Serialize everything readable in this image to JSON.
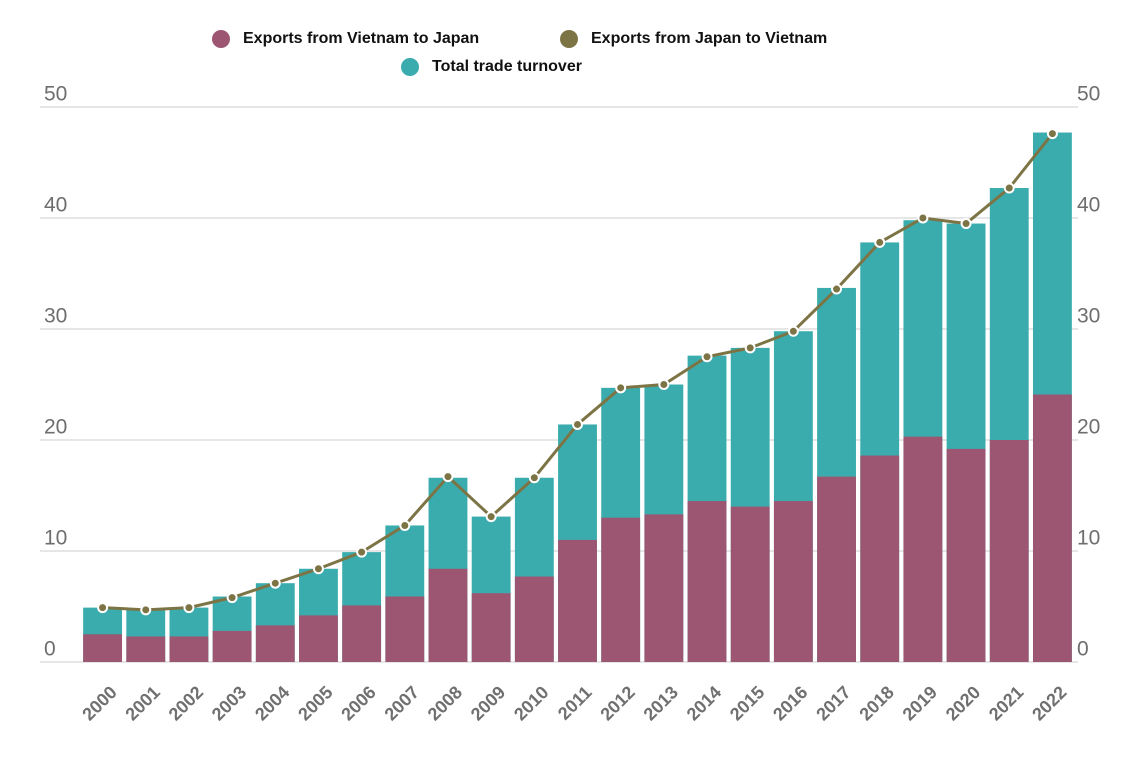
{
  "chart_data": {
    "type": "bar",
    "categories": [
      "2000",
      "2001",
      "2002",
      "2003",
      "2004",
      "2005",
      "2006",
      "2007",
      "2008",
      "2009",
      "2010",
      "2011",
      "2012",
      "2013",
      "2014",
      "2015",
      "2016",
      "2017",
      "2018",
      "2019",
      "2020",
      "2021",
      "2022"
    ],
    "series": [
      {
        "name": "Exports from Vietnam to Japan",
        "color": "#9c5672",
        "type": "bar",
        "values": [
          2.5,
          2.3,
          2.3,
          2.8,
          3.3,
          4.2,
          5.1,
          5.9,
          8.4,
          6.2,
          7.7,
          11.0,
          13.0,
          13.3,
          14.5,
          14.0,
          14.5,
          16.7,
          18.6,
          20.3,
          19.2,
          20.0,
          24.1
        ]
      },
      {
        "name": "Exports from Japan to Vietnam",
        "color": "#7d7445",
        "type": "line",
        "values": [
          4.9,
          4.7,
          4.9,
          5.8,
          7.1,
          8.4,
          9.9,
          12.3,
          16.7,
          13.1,
          16.6,
          21.4,
          24.7,
          25.0,
          27.5,
          28.3,
          29.8,
          33.6,
          37.8,
          40.0,
          39.5,
          42.7,
          47.6
        ]
      },
      {
        "name": "Total trade turnover",
        "color": "#3aacad",
        "type": "bar",
        "values": [
          4.9,
          4.7,
          4.9,
          5.9,
          7.1,
          8.4,
          9.9,
          12.3,
          16.6,
          13.1,
          16.6,
          21.4,
          24.7,
          25.0,
          27.6,
          28.3,
          29.8,
          33.7,
          37.8,
          39.8,
          39.5,
          42.7,
          47.7
        ]
      }
    ],
    "ylim": [
      0,
      50
    ],
    "yticks": [
      0,
      10,
      20,
      30,
      40,
      50
    ],
    "y2lim": [
      0,
      50
    ],
    "y2ticks": [
      0,
      10,
      20,
      30,
      40,
      50
    ],
    "grid": true
  }
}
